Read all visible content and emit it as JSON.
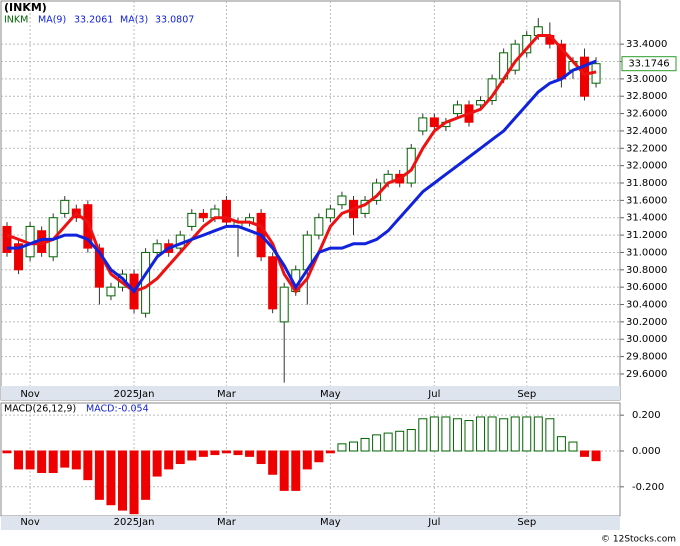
{
  "chart_data": {
    "type": "candlestick",
    "title": "(INKM)",
    "symbol": "INKM",
    "ma9_label": "MA(9)",
    "ma9_value": 33.2061,
    "ma3_label": "MA(3)",
    "ma3_value": 33.0807,
    "last_price": 33.1746,
    "footer": "© 12Stocks.com",
    "open": [
      31.3,
      31.1,
      30.95,
      31.25,
      30.95,
      31.45,
      31.5,
      31.55,
      31.05,
      30.5,
      30.6,
      30.75,
      30.3,
      31.0,
      31.1,
      31.05,
      31.3,
      31.45,
      31.4,
      31.6,
      31.3,
      31.35,
      31.45,
      30.95,
      30.2,
      30.55,
      30.8,
      31.2,
      31.4,
      31.55,
      31.6,
      31.45,
      31.6,
      31.8,
      31.9,
      31.8,
      32.4,
      32.55,
      32.45,
      32.6,
      32.7,
      32.7,
      32.75,
      33.0,
      33.1,
      33.3,
      33.5,
      33.5,
      33.4,
      33.1,
      33.25,
      32.95
    ],
    "high": [
      31.35,
      31.15,
      31.35,
      31.3,
      31.45,
      31.65,
      31.55,
      31.6,
      31.1,
      30.65,
      30.8,
      30.8,
      31.05,
      31.15,
      31.15,
      31.25,
      31.5,
      31.5,
      31.55,
      31.65,
      31.4,
      31.45,
      31.5,
      31.0,
      30.65,
      30.85,
      31.25,
      31.45,
      31.55,
      31.7,
      31.65,
      31.65,
      31.85,
      31.95,
      31.95,
      32.25,
      32.6,
      32.6,
      32.55,
      32.75,
      32.75,
      32.8,
      33.05,
      33.35,
      33.45,
      33.55,
      33.7,
      33.65,
      33.45,
      33.25,
      33.35,
      33.25
    ],
    "low": [
      30.95,
      30.75,
      30.9,
      30.95,
      30.9,
      31.4,
      31.35,
      31.0,
      30.4,
      30.45,
      30.55,
      30.3,
      30.25,
      30.95,
      30.95,
      31.0,
      31.25,
      31.35,
      31.35,
      31.3,
      30.95,
      31.3,
      30.9,
      30.3,
      29.5,
      30.5,
      30.4,
      31.15,
      31.35,
      31.5,
      31.2,
      31.4,
      31.55,
      31.75,
      31.75,
      31.75,
      32.35,
      32.4,
      32.4,
      32.55,
      32.45,
      32.65,
      32.7,
      32.95,
      33.05,
      33.25,
      33.45,
      33.35,
      32.9,
      33.0,
      32.75,
      32.9
    ],
    "close": [
      31.0,
      30.8,
      31.3,
      31.0,
      31.4,
      31.6,
      31.4,
      31.05,
      30.6,
      30.6,
      30.75,
      30.35,
      31.0,
      31.1,
      31.0,
      31.2,
      31.45,
      31.4,
      31.5,
      31.35,
      31.35,
      31.4,
      30.95,
      30.35,
      30.6,
      30.8,
      31.2,
      31.4,
      31.5,
      31.65,
      31.4,
      31.6,
      31.8,
      31.9,
      31.8,
      32.2,
      32.55,
      32.45,
      32.5,
      32.7,
      32.5,
      32.75,
      33.0,
      33.3,
      33.4,
      33.5,
      33.6,
      33.4,
      33.0,
      33.2,
      32.8,
      33.1746
    ],
    "up_color": "#006400",
    "down_color": "#ee0000",
    "series": [
      {
        "name": "MA(3)",
        "color": "#ee1111",
        "values": [
          31.2,
          31.15,
          31.1,
          31.1,
          31.15,
          31.3,
          31.45,
          31.35,
          31.0,
          30.75,
          30.65,
          30.55,
          30.6,
          30.7,
          30.85,
          31.0,
          31.15,
          31.3,
          31.4,
          31.4,
          31.35,
          31.35,
          31.3,
          31.1,
          30.75,
          30.55,
          30.7,
          31.0,
          31.3,
          31.45,
          31.5,
          31.55,
          31.65,
          31.8,
          31.85,
          31.95,
          32.2,
          32.4,
          32.5,
          32.55,
          32.6,
          32.65,
          32.8,
          33.0,
          33.2,
          33.35,
          33.5,
          33.5,
          33.35,
          33.2,
          33.05,
          33.0807
        ]
      },
      {
        "name": "MA(9)",
        "color": "#1122dd",
        "values": [
          31.05,
          31.05,
          31.1,
          31.15,
          31.15,
          31.2,
          31.2,
          31.15,
          31.0,
          30.8,
          30.7,
          30.55,
          30.75,
          30.95,
          31.05,
          31.1,
          31.15,
          31.2,
          31.25,
          31.3,
          31.3,
          31.25,
          31.2,
          31.05,
          30.85,
          30.6,
          30.8,
          31.0,
          31.05,
          31.05,
          31.1,
          31.1,
          31.15,
          31.25,
          31.4,
          31.55,
          31.7,
          31.8,
          31.9,
          32.0,
          32.1,
          32.2,
          32.3,
          32.4,
          32.55,
          32.7,
          32.85,
          32.95,
          33.0,
          33.1,
          33.15,
          33.2061
        ]
      }
    ],
    "ylim": [
      29.3,
      33.897
    ],
    "yticks": [
      {
        "value": 29.6,
        "label": "29.6000"
      },
      {
        "value": 29.8,
        "label": "29.8000"
      },
      {
        "value": 30.0,
        "label": "30.0000"
      },
      {
        "value": 30.2,
        "label": "30.2000"
      },
      {
        "value": 30.4,
        "label": "30.4000"
      },
      {
        "value": 30.6,
        "label": "30.6000"
      },
      {
        "value": 30.8,
        "label": "30.8000"
      },
      {
        "value": 31.0,
        "label": "31.0000"
      },
      {
        "value": 31.2,
        "label": "31.2000"
      },
      {
        "value": 31.4,
        "label": "31.4000"
      },
      {
        "value": 31.6,
        "label": "31.6000"
      },
      {
        "value": 31.8,
        "label": "31.8000"
      },
      {
        "value": 32.0,
        "label": "32.0000"
      },
      {
        "value": 32.2,
        "label": "32.2000"
      },
      {
        "value": 32.4,
        "label": "32.4000"
      },
      {
        "value": 32.6,
        "label": "32.6000"
      },
      {
        "value": 32.8,
        "label": "32.8000"
      },
      {
        "value": 33.0,
        "label": "33.0000"
      },
      {
        "value": 33.2,
        "label": "33.2000"
      },
      {
        "value": 33.4,
        "label": "33.4000"
      }
    ],
    "xticks": [
      {
        "value": 2,
        "label": "Nov"
      },
      {
        "value": 11,
        "label": "2025Jan"
      },
      {
        "value": 19,
        "label": "Mar"
      },
      {
        "value": 28,
        "label": "May"
      },
      {
        "value": 37,
        "label": "Jul"
      },
      {
        "value": 45,
        "label": "Sep"
      }
    ],
    "macd": {
      "label": "MACD(26,12,9)",
      "value_label": "MACD:",
      "value": -0.054,
      "values": [
        -0.01,
        -0.1,
        -0.1,
        -0.12,
        -0.12,
        -0.09,
        -0.1,
        -0.16,
        -0.27,
        -0.3,
        -0.33,
        -0.35,
        -0.27,
        -0.14,
        -0.1,
        -0.07,
        -0.05,
        -0.03,
        -0.02,
        -0.01,
        -0.02,
        -0.03,
        -0.07,
        -0.13,
        -0.22,
        -0.22,
        -0.1,
        -0.06,
        -0.01,
        0.04,
        0.05,
        0.07,
        0.09,
        0.1,
        0.11,
        0.12,
        0.18,
        0.19,
        0.19,
        0.18,
        0.17,
        0.19,
        0.19,
        0.18,
        0.19,
        0.19,
        0.19,
        0.18,
        0.08,
        0.05,
        -0.03,
        -0.054
      ],
      "ylim": [
        -0.363,
        0.268
      ],
      "yticks": [
        {
          "value": 0.2,
          "label": "0.200"
        },
        {
          "value": 0,
          "label": "0.000"
        },
        {
          "value": -0.2,
          "label": "-0.200"
        }
      ]
    },
    "grid": true
  }
}
